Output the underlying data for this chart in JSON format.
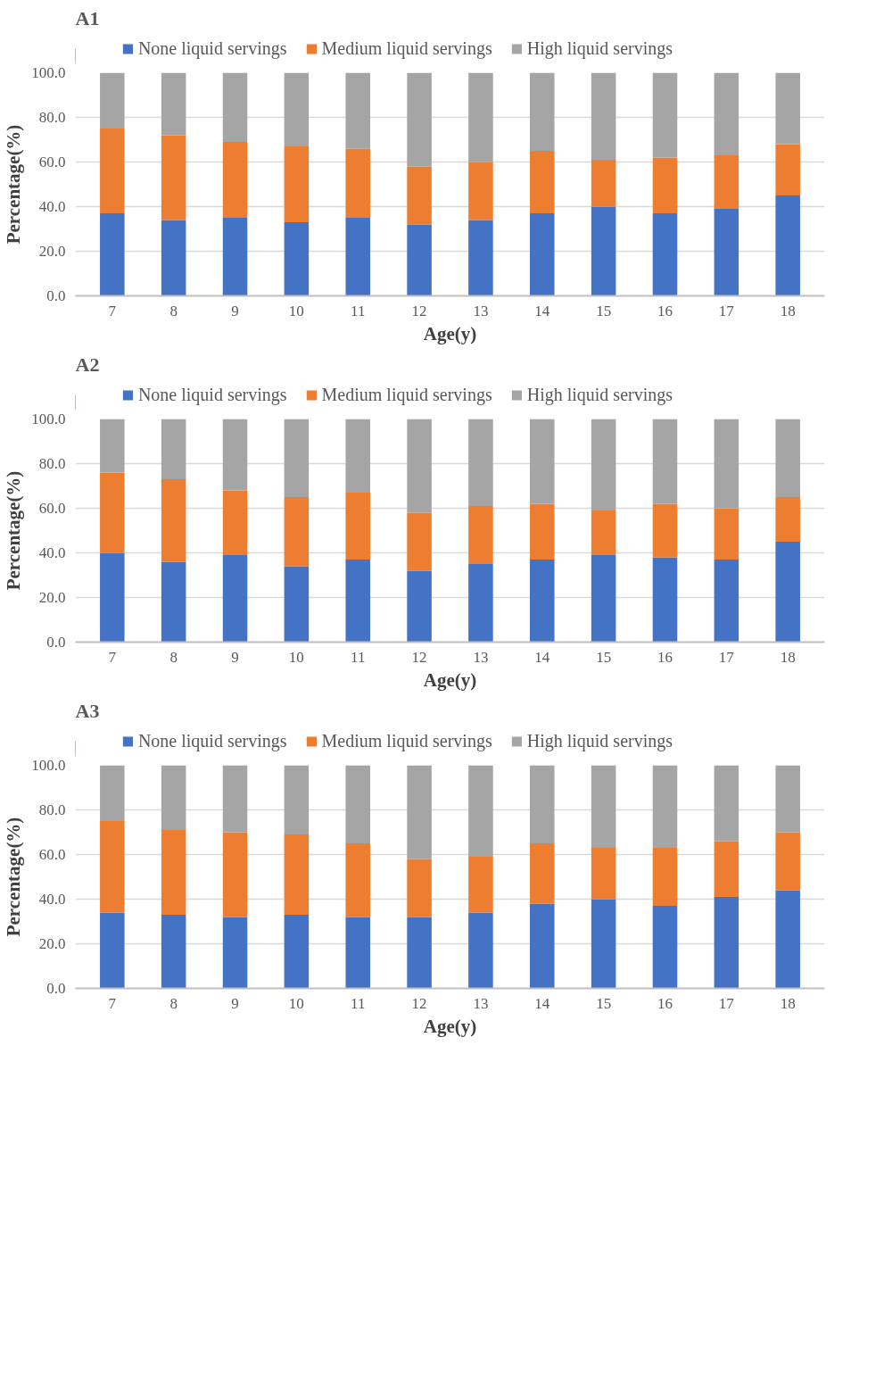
{
  "chart_data": [
    {
      "type": "bar",
      "title": "A1",
      "xlabel": "Age(y)",
      "ylabel": "Percentage(%)",
      "stacked": true,
      "legend": "top",
      "grid": "y",
      "categories": [
        "7",
        "8",
        "9",
        "10",
        "11",
        "12",
        "13",
        "14",
        "15",
        "16",
        "17",
        "18"
      ],
      "ylim": [
        0,
        100
      ],
      "yticks": [
        {
          "value": 0,
          "label": "0.0"
        },
        {
          "value": 20,
          "label": "20.0"
        },
        {
          "value": 40,
          "label": "40.0"
        },
        {
          "value": 60,
          "label": "60.0"
        },
        {
          "value": 80,
          "label": "80.0"
        },
        {
          "value": 100,
          "label": "100.0"
        }
      ],
      "series": [
        {
          "name": "None liquid servings",
          "color": "#4472c4",
          "values": [
            37,
            34,
            35,
            33,
            35,
            32,
            34,
            37,
            40,
            37,
            39,
            45
          ]
        },
        {
          "name": "Medium liquid servings",
          "color": "#ed7d31",
          "values": [
            38,
            38,
            34,
            34,
            31,
            26,
            26,
            28,
            21,
            25,
            24,
            23
          ]
        },
        {
          "name": "High liquid servings",
          "color": "#a5a5a5",
          "values": [
            25,
            28,
            31,
            33,
            34,
            42,
            40,
            35,
            39,
            38,
            37,
            32
          ]
        }
      ]
    },
    {
      "type": "bar",
      "title": "A2",
      "xlabel": "Age(y)",
      "ylabel": "Percentage(%)",
      "stacked": true,
      "legend": "top",
      "grid": "y",
      "categories": [
        "7",
        "8",
        "9",
        "10",
        "11",
        "12",
        "13",
        "14",
        "15",
        "16",
        "17",
        "18"
      ],
      "ylim": [
        0,
        100
      ],
      "yticks": [
        {
          "value": 0,
          "label": "0.0"
        },
        {
          "value": 20,
          "label": "20.0"
        },
        {
          "value": 40,
          "label": "40.0"
        },
        {
          "value": 60,
          "label": "60.0"
        },
        {
          "value": 80,
          "label": "80.0"
        },
        {
          "value": 100,
          "label": "100.0"
        }
      ],
      "series": [
        {
          "name": "None liquid servings",
          "color": "#4472c4",
          "values": [
            40,
            36,
            39,
            34,
            37,
            32,
            35,
            37,
            39,
            38,
            37,
            45
          ]
        },
        {
          "name": "Medium liquid servings",
          "color": "#ed7d31",
          "values": [
            36,
            37,
            29,
            31,
            30,
            26,
            26,
            25,
            20,
            24,
            23,
            20
          ]
        },
        {
          "name": "High liquid servings",
          "color": "#a5a5a5",
          "values": [
            24,
            27,
            32,
            35,
            33,
            42,
            39,
            38,
            41,
            38,
            40,
            35
          ]
        }
      ]
    },
    {
      "type": "bar",
      "title": "A3",
      "xlabel": "Age(y)",
      "ylabel": "Percentage(%)",
      "stacked": true,
      "legend": "top",
      "grid": "y",
      "categories": [
        "7",
        "8",
        "9",
        "10",
        "11",
        "12",
        "13",
        "14",
        "15",
        "16",
        "17",
        "18"
      ],
      "ylim": [
        0,
        100
      ],
      "yticks": [
        {
          "value": 0,
          "label": "0.0"
        },
        {
          "value": 20,
          "label": "20.0"
        },
        {
          "value": 40,
          "label": "40.0"
        },
        {
          "value": 60,
          "label": "60.0"
        },
        {
          "value": 80,
          "label": "80.0"
        },
        {
          "value": 100,
          "label": "100.0"
        }
      ],
      "series": [
        {
          "name": "None liquid servings",
          "color": "#4472c4",
          "values": [
            34,
            33,
            32,
            33,
            32,
            32,
            34,
            38,
            40,
            37,
            41,
            44
          ]
        },
        {
          "name": "Medium liquid servings",
          "color": "#ed7d31",
          "values": [
            41,
            38,
            38,
            36,
            33,
            26,
            25,
            27,
            23,
            26,
            25,
            26
          ]
        },
        {
          "name": "High liquid servings",
          "color": "#a5a5a5",
          "values": [
            25,
            29,
            30,
            31,
            35,
            42,
            41,
            35,
            37,
            37,
            34,
            30
          ]
        }
      ]
    }
  ]
}
